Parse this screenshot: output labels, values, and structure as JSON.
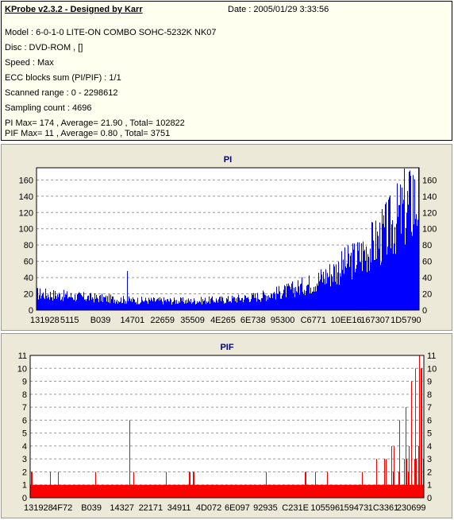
{
  "header": {
    "title": "KProbe v2.3.2 - Designed by Karr",
    "date": "Date : 2005/01/29 3:33:56"
  },
  "info_lines": [
    "Model : 6-0-1-0 LITE-ON COMBO SOHC-5232K NK07",
    "Disc : DVD-ROM ,  []",
    "Speed : Max",
    "ECC blocks sum (PI/PIF) : 1/1",
    "Scanned range : 0 - 2298612",
    "Sampling count : 4696",
    "PI Max= 174 , Average= 21.90 , Total= 102822",
    "PIF Max= 11 , Average= 0.80 , Total= 3751"
  ],
  "chart_data": [
    {
      "type": "bar",
      "title": "PI",
      "ylim": [
        0,
        175
      ],
      "yticks": [
        0,
        20,
        40,
        60,
        80,
        100,
        120,
        140,
        160
      ],
      "xtick_labels": [
        "131928",
        "5115",
        "B039",
        "14701",
        "22659",
        "35509",
        "4E265",
        "6E738",
        "95300",
        "C6771",
        "10EE16",
        "167307",
        "1D5790"
      ],
      "grid": true,
      "bar_color": "#0000ff",
      "profile": [
        {
          "pos": 0.0,
          "value": 22
        },
        {
          "pos": 0.05,
          "value": 20
        },
        {
          "pos": 0.1,
          "value": 18
        },
        {
          "pos": 0.22,
          "value": 14
        },
        {
          "pos": 0.25,
          "value": 13
        },
        {
          "pos": 0.4,
          "value": 12
        },
        {
          "pos": 0.5,
          "value": 14
        },
        {
          "pos": 0.58,
          "value": 18
        },
        {
          "pos": 0.66,
          "value": 26
        },
        {
          "pos": 0.72,
          "value": 36
        },
        {
          "pos": 0.78,
          "value": 52
        },
        {
          "pos": 0.84,
          "value": 70
        },
        {
          "pos": 0.9,
          "value": 95
        },
        {
          "pos": 0.95,
          "value": 125
        },
        {
          "pos": 1.0,
          "value": 150
        }
      ],
      "spikes": [
        {
          "pos": 0.237,
          "value": 48
        },
        {
          "pos": 0.962,
          "value": 174
        },
        {
          "pos": 0.975,
          "value": 170
        },
        {
          "pos": 0.985,
          "value": 166
        }
      ]
    },
    {
      "type": "bar",
      "title": "PIF",
      "ylim": [
        0,
        11
      ],
      "yticks": [
        0,
        1,
        2,
        3,
        4,
        5,
        6,
        7,
        8,
        9,
        10,
        11
      ],
      "xtick_labels": [
        "131928",
        "4F72",
        "B039",
        "14327",
        "22171",
        "34911",
        "4D072",
        "6E097",
        "92935",
        "C231E",
        "105596",
        "159473",
        "1C3361",
        "230699"
      ],
      "grid": true,
      "bar_color": "#ff0000",
      "base_value": 1,
      "spikes": [
        {
          "pos": 0.003,
          "value": 2
        },
        {
          "pos": 0.05,
          "value": 2
        },
        {
          "pos": 0.07,
          "value": 2
        },
        {
          "pos": 0.165,
          "value": 2
        },
        {
          "pos": 0.252,
          "value": 6
        },
        {
          "pos": 0.262,
          "value": 2
        },
        {
          "pos": 0.345,
          "value": 2
        },
        {
          "pos": 0.405,
          "value": 2
        },
        {
          "pos": 0.415,
          "value": 2
        },
        {
          "pos": 0.6,
          "value": 2
        },
        {
          "pos": 0.7,
          "value": 2
        },
        {
          "pos": 0.725,
          "value": 2
        },
        {
          "pos": 0.755,
          "value": 2
        },
        {
          "pos": 0.845,
          "value": 2
        },
        {
          "pos": 0.88,
          "value": 3
        },
        {
          "pos": 0.905,
          "value": 3
        },
        {
          "pos": 0.925,
          "value": 4
        },
        {
          "pos": 0.94,
          "value": 6
        },
        {
          "pos": 0.955,
          "value": 7
        },
        {
          "pos": 0.97,
          "value": 9
        },
        {
          "pos": 0.98,
          "value": 10
        },
        {
          "pos": 0.99,
          "value": 11
        },
        {
          "pos": 0.995,
          "value": 10
        }
      ]
    }
  ]
}
